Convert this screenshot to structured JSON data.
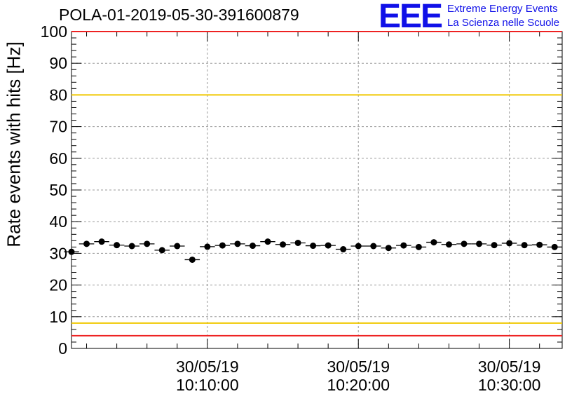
{
  "header": {
    "title": "POLA-01-2019-05-30-391600879",
    "logo_text": "EEE",
    "logo_line1": "Extreme Energy Events",
    "logo_line2": "La Scienza nelle Scuole"
  },
  "chart_data": {
    "type": "scatter",
    "title": "POLA-01-2019-05-30-391600879",
    "xlabel": "",
    "ylabel": "Rate events with hits [Hz]",
    "ylim": [
      0,
      100
    ],
    "xlim": [
      "2019-05-30 10:01:00",
      "2019-05-30 10:33:30"
    ],
    "yticks": [
      0,
      10,
      20,
      30,
      40,
      50,
      60,
      70,
      80,
      90,
      100
    ],
    "xticks": [
      {
        "date": "30/05/19",
        "time": "10:10:00",
        "value": "2019-05-30 10:10:00"
      },
      {
        "date": "30/05/19",
        "time": "10:20:00",
        "value": "2019-05-30 10:20:00"
      },
      {
        "date": "30/05/19",
        "time": "10:30:00",
        "value": "2019-05-30 10:30:00"
      }
    ],
    "grid": true,
    "series": [
      {
        "x": [
          "10:01:00",
          "10:02:00",
          "10:03:00",
          "10:04:00",
          "10:05:00",
          "10:06:00",
          "10:07:00",
          "10:08:00",
          "10:09:00",
          "10:10:00",
          "10:11:00",
          "10:12:00",
          "10:13:00",
          "10:14:00",
          "10:15:00",
          "10:16:00",
          "10:17:00",
          "10:18:00",
          "10:19:00",
          "10:20:00",
          "10:21:00",
          "10:22:00",
          "10:23:00",
          "10:24:00",
          "10:25:00",
          "10:26:00",
          "10:27:00",
          "10:28:00",
          "10:29:00",
          "10:30:00",
          "10:31:00",
          "10:32:00",
          "10:33:00"
        ],
        "y": [
          30.5,
          33.0,
          33.7,
          32.6,
          32.3,
          33.0,
          31.0,
          32.3,
          28.0,
          32.1,
          32.5,
          33.0,
          32.4,
          33.7,
          32.8,
          33.3,
          32.4,
          32.5,
          31.3,
          32.3,
          32.3,
          31.7,
          32.5,
          32.0,
          33.5,
          32.8,
          33.0,
          33.0,
          32.6,
          33.2,
          32.6,
          32.7,
          32.0
        ],
        "color": "#000000"
      }
    ],
    "reference_lines": [
      {
        "y": 80,
        "color": "#f0c800"
      },
      {
        "y": 8,
        "color": "#f0c800"
      },
      {
        "y": 100,
        "color": "#ee2222"
      },
      {
        "y": 4,
        "color": "#ee2222"
      }
    ]
  }
}
